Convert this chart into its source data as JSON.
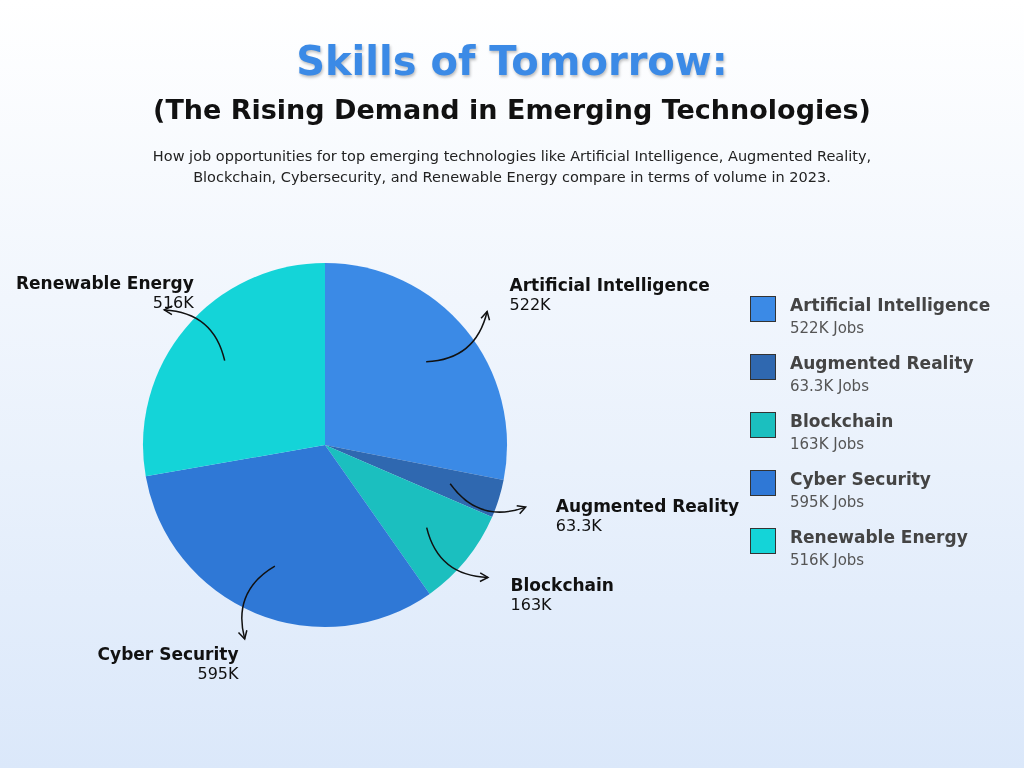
{
  "chart_data": {
    "type": "pie",
    "title": "Skills of Tomorrow:",
    "subtitle": "(The Rising Demand in Emerging Technologies)",
    "categories": [
      "Artificial Intelligence",
      "Augmented Reality",
      "Blockchain",
      "Cyber Security",
      "Renewable Energy"
    ],
    "values": [
      522,
      63.3,
      163,
      595,
      516
    ],
    "value_labels": [
      "522K",
      "63.3K",
      "163K",
      "595K",
      "516K"
    ],
    "colors": [
      "#3b8ae6",
      "#2f68b0",
      "#1bbfbf",
      "#2f78d6",
      "#14d4d8"
    ],
    "legend": "right",
    "annotations": [
      "How job opportunities for top emerging technologies like Artificial Intelligence, Augmented Reality, Blockchain, Cybersecurity, and Renewable Energy compare in terms of volume in 2023.",
      "522K Jobs",
      "63.3K Jobs",
      "163K Jobs",
      "595K Jobs",
      "516K Jobs"
    ]
  }
}
